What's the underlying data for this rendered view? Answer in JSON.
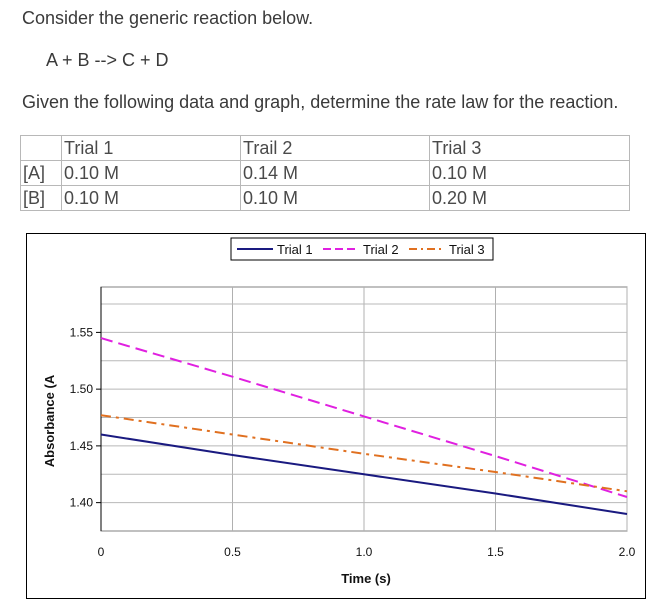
{
  "prompt": {
    "intro": "Consider the generic reaction below.",
    "reaction": "A + B --> C + D",
    "question": "Given the following data and graph, determine the rate law for the reaction."
  },
  "table": {
    "headers": [
      "",
      "Trial 1",
      "Trail 2",
      "Trial 3"
    ],
    "rows": [
      [
        "[A]",
        "0.10 M",
        "0.14 M",
        "0.10 M"
      ],
      [
        "[B]",
        "0.10 M",
        "0.10 M",
        "0.20 M"
      ]
    ]
  },
  "chart_data": {
    "type": "line",
    "title": "",
    "xlabel": "Time (s)",
    "ylabel": "Absorbance (A",
    "xlim": [
      0,
      2.0
    ],
    "ylim": [
      1.375,
      1.59
    ],
    "xticks": [
      0,
      0.5,
      1.0,
      1.5,
      2.0
    ],
    "xtick_labels": [
      "0",
      "0.5",
      "1.0",
      "1.5",
      "2.0"
    ],
    "yticks": [
      1.4,
      1.45,
      1.5,
      1.55
    ],
    "ytick_labels": [
      "1.40",
      "1.45",
      "1.50",
      "1.55"
    ],
    "grid": true,
    "legend_position": "top-center",
    "series": [
      {
        "name": "Trial 1",
        "color": "#1a1a80",
        "dash": "solid",
        "x": [
          0,
          0.5,
          1.0,
          1.5,
          2.0
        ],
        "y": [
          1.46,
          1.442,
          1.425,
          1.408,
          1.39
        ]
      },
      {
        "name": "Trial 2",
        "color": "#e020e0",
        "dash": "dashed",
        "x": [
          0,
          0.5,
          1.0,
          1.5,
          2.0
        ],
        "y": [
          1.545,
          1.511,
          1.476,
          1.441,
          1.405
        ]
      },
      {
        "name": "Trial 3",
        "color": "#e07020",
        "dash": "dash-dot",
        "x": [
          0,
          0.5,
          1.0,
          1.5,
          2.0
        ],
        "y": [
          1.477,
          1.46,
          1.443,
          1.427,
          1.41
        ]
      }
    ]
  }
}
